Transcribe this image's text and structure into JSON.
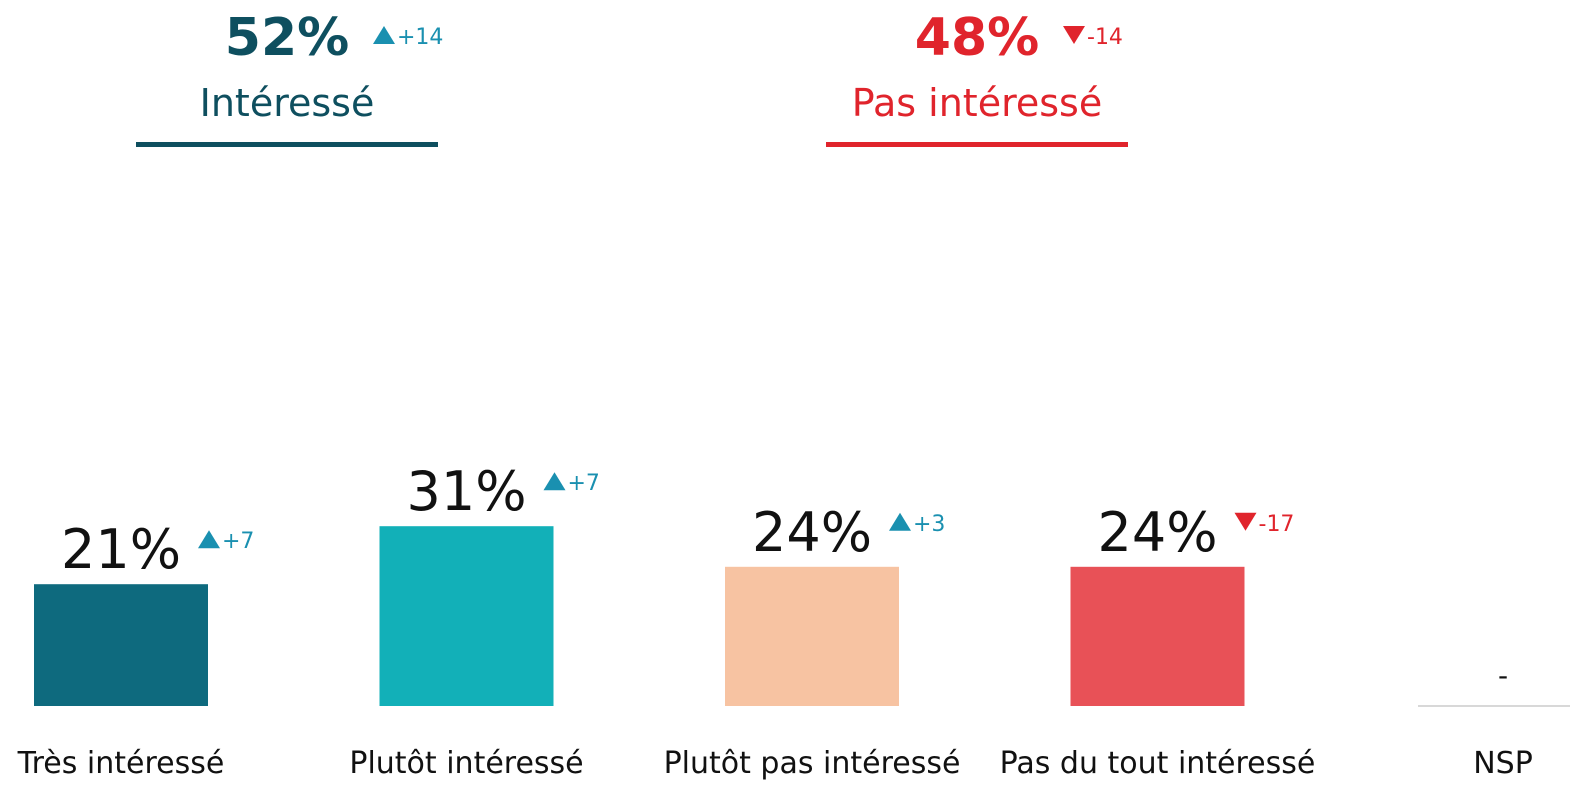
{
  "chart_data": {
    "type": "bar",
    "summaries": [
      {
        "label": "Intéressé",
        "value": 52,
        "value_label": "52%",
        "change": 14,
        "change_label": "+14",
        "color": "#0e4f5f"
      },
      {
        "label": "Pas intéressé",
        "value": 48,
        "value_label": "48%",
        "change": -14,
        "change_label": "-14",
        "color": "#e0242c"
      }
    ],
    "categories": [
      "Très intéressé",
      "Plutôt intéressé",
      "Plutôt pas intéressé",
      "Pas du tout intéressé",
      "NSP"
    ],
    "values": [
      21,
      31,
      24,
      24,
      null
    ],
    "value_labels": [
      "21%",
      "31%",
      "24%",
      "24%",
      "-"
    ],
    "changes": [
      7,
      7,
      3,
      -17,
      null
    ],
    "change_labels": [
      "+7",
      "+7",
      "+3",
      "-17",
      null
    ],
    "colors": [
      "#0e6a7e",
      "#12b0b8",
      "#f7c3a2",
      "#e85157",
      "#cccccc"
    ],
    "ylim": [
      0,
      100
    ]
  }
}
